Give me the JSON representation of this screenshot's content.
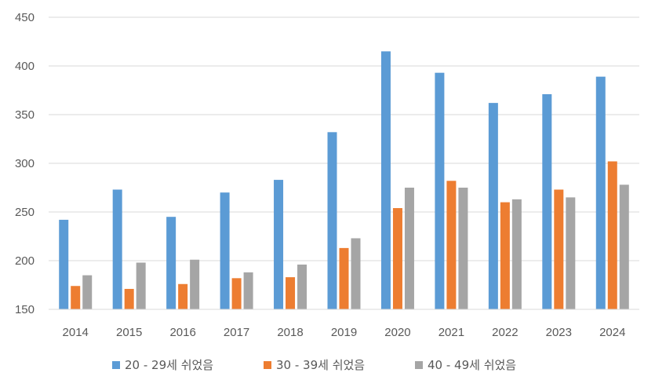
{
  "chart_data": {
    "type": "bar",
    "title": "",
    "xlabel": "",
    "ylabel": "",
    "categories": [
      "2014",
      "2015",
      "2016",
      "2017",
      "2018",
      "2019",
      "2020",
      "2021",
      "2022",
      "2023",
      "2024"
    ],
    "series": [
      {
        "name": "20 - 29세 쉬었음",
        "color": "#5B9BD5",
        "values": [
          242,
          273,
          245,
          270,
          283,
          332,
          415,
          393,
          362,
          371,
          389
        ]
      },
      {
        "name": "30 - 39세 쉬었음",
        "color": "#ED7D31",
        "values": [
          174,
          171,
          176,
          182,
          183,
          213,
          254,
          282,
          260,
          273,
          302
        ]
      },
      {
        "name": "40 - 49세 쉬었음",
        "color": "#A5A5A5",
        "values": [
          185,
          198,
          201,
          188,
          196,
          223,
          275,
          275,
          263,
          265,
          278
        ]
      }
    ],
    "ylim": [
      150,
      450
    ],
    "yticks": [
      150,
      200,
      250,
      300,
      350,
      400,
      450
    ],
    "grid": true,
    "legend": "bottom"
  }
}
